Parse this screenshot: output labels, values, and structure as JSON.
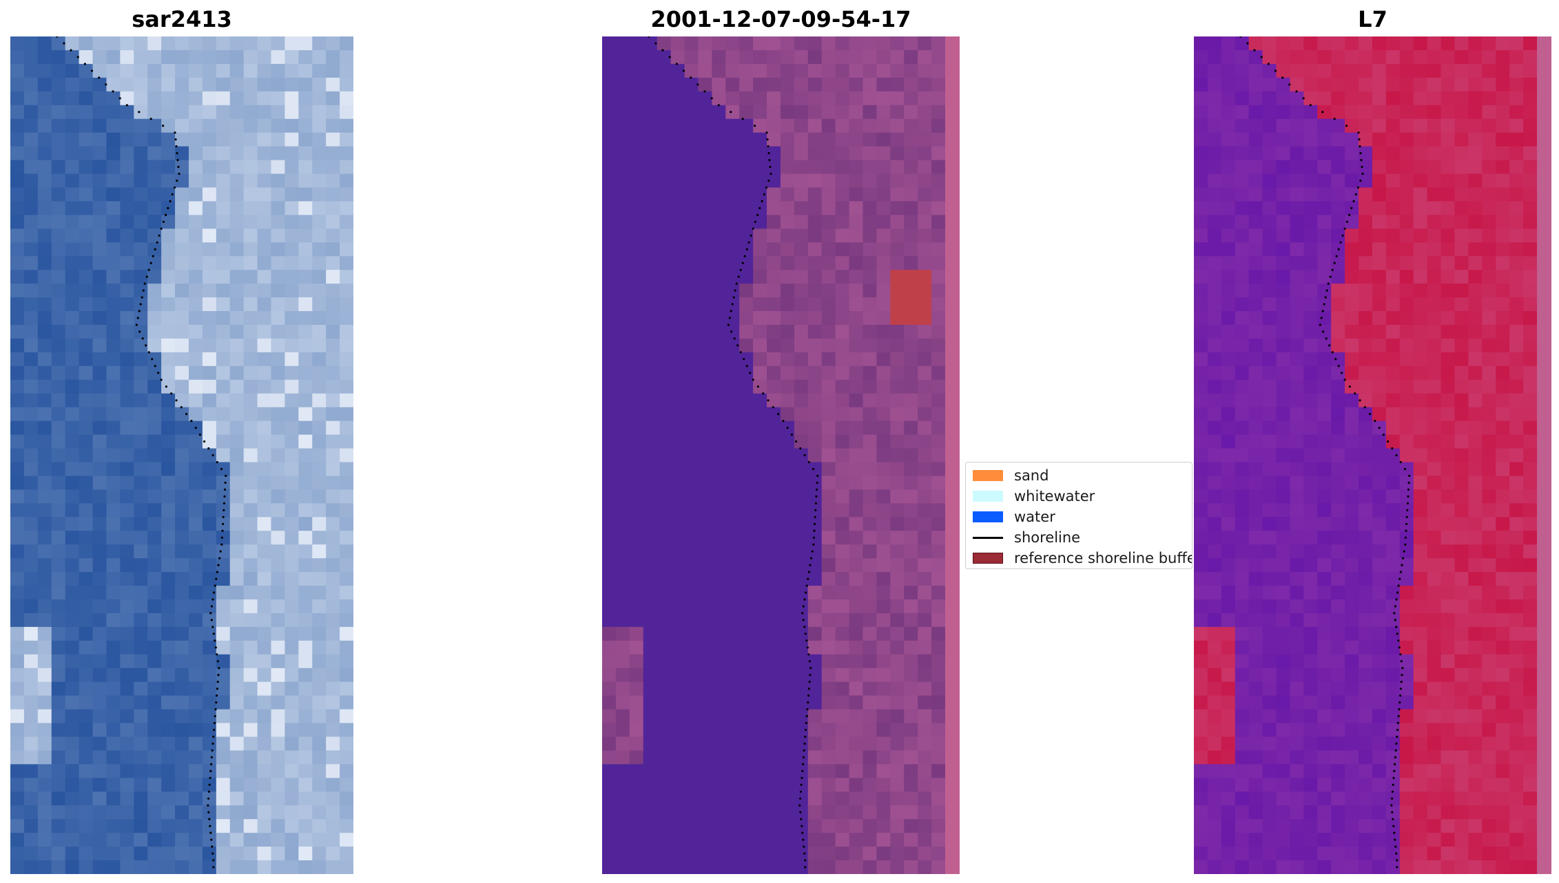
{
  "panels": {
    "rgb": {
      "title": "sar2413"
    },
    "class": {
      "title": "2001-12-07-09-54-17"
    },
    "mndwi": {
      "title": "L7"
    }
  },
  "legend": {
    "items": [
      {
        "label": "sand",
        "color": "#ff8c3a",
        "kind": "patch"
      },
      {
        "label": "whitewater",
        "color": "#ccfbff",
        "kind": "patch"
      },
      {
        "label": "water",
        "color": "#0a5cff",
        "kind": "patch"
      },
      {
        "label": "shoreline",
        "color": "#000000",
        "kind": "line"
      },
      {
        "label": "reference shoreline buffer",
        "color": "#9b2b35",
        "kind": "patch"
      }
    ]
  },
  "colors": {
    "water_class": "#52249a",
    "land_class": "#7a3a80",
    "sar_water": "#2a56a0",
    "sar_land": "#8ea8cf",
    "mndwi_water": "#6a1aa8",
    "mndwi_land": "#c8184a",
    "buffer_strip": "#c06090"
  }
}
